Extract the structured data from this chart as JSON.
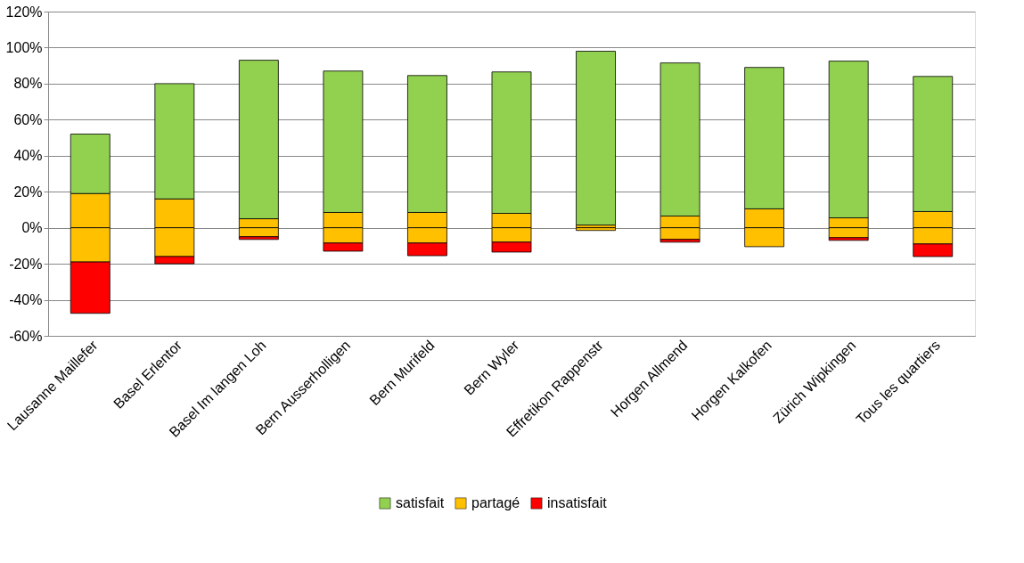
{
  "chart_data": {
    "type": "bar",
    "stacked": true,
    "categories": [
      "Lausanne Maillefer",
      "Basel Erlentor",
      "Basel Im langen Loh",
      "Bern Ausserholligen",
      "Bern Murifeld",
      "Bern Wyler",
      "Effretikon Rappenstr",
      "Horgen Allmend",
      "Horgen Kalkofen",
      "Zürich Wipkingen",
      "Tous les quartiers"
    ],
    "series": [
      {
        "name": "partagé",
        "color": "#ffc000",
        "values": [
          19,
          16,
          5,
          8.5,
          8.5,
          8,
          1.5,
          6.5,
          10.5,
          5.5,
          9
        ]
      },
      {
        "name": "satisfait",
        "color": "#92d050",
        "values": [
          33,
          64,
          88,
          78.5,
          76,
          78.5,
          96.5,
          85,
          78.5,
          87,
          75
        ]
      },
      {
        "color": "#ffc000",
        "values": [
          -19,
          -16,
          -5,
          -8.5,
          -8.5,
          -8,
          -1.5,
          -6.5,
          -10.5,
          -5.5,
          -9
        ]
      },
      {
        "name": "insatisfait",
        "color": "#ff0000",
        "values": [
          -28.5,
          -4,
          -1.5,
          -4.5,
          -7,
          -5.5,
          null,
          -1.5,
          null,
          -1.5,
          -7
        ]
      }
    ],
    "ylim": [
      -60,
      120
    ],
    "yticks": [
      {
        "value": -60,
        "label": "-60%"
      },
      {
        "value": -40,
        "label": "-40%"
      },
      {
        "value": -20,
        "label": "-20%"
      },
      {
        "value": 0,
        "label": "0%"
      },
      {
        "value": 20,
        "label": "20%"
      },
      {
        "value": 40,
        "label": "40%"
      },
      {
        "value": 60,
        "label": "60%"
      },
      {
        "value": 80,
        "label": "80%"
      },
      {
        "value": 100,
        "label": "100%"
      },
      {
        "value": 120,
        "label": "120%"
      }
    ],
    "grid": "y",
    "legend": "bottom"
  }
}
